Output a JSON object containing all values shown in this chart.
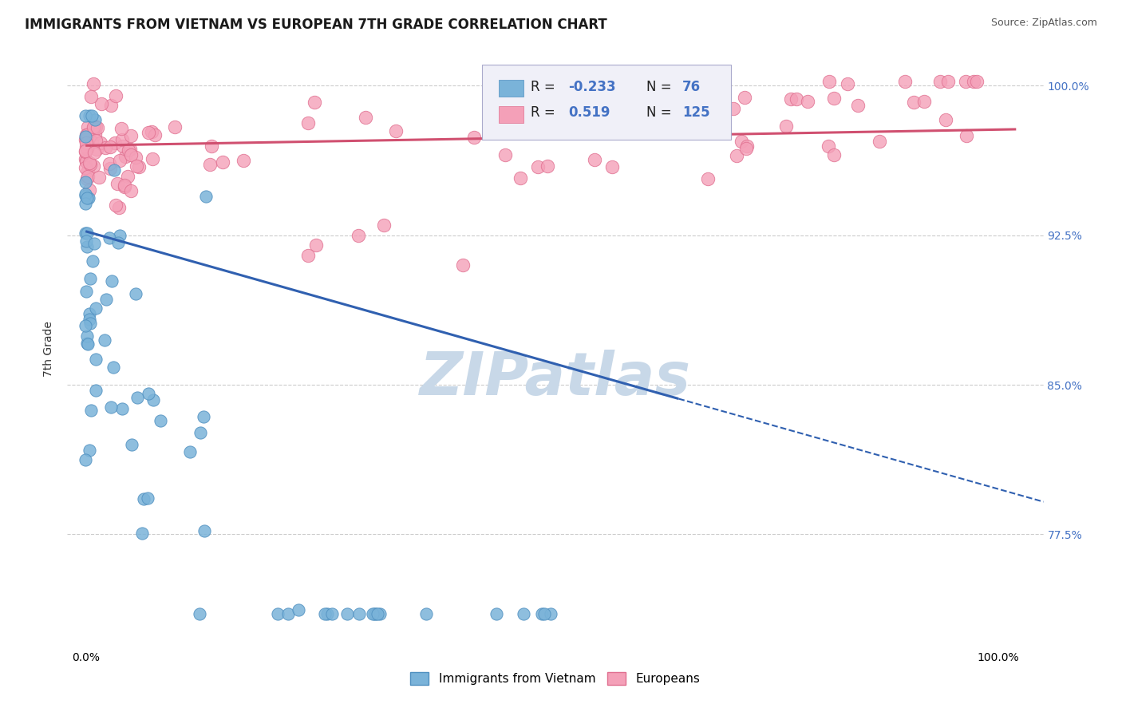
{
  "title": "IMMIGRANTS FROM VIETNAM VS EUROPEAN 7TH GRADE CORRELATION CHART",
  "source_text": "Source: ZipAtlas.com",
  "ylabel": "7th Grade",
  "blue_color": "#7ab3d9",
  "blue_edge_color": "#5090c0",
  "pink_color": "#f4a0b8",
  "pink_edge_color": "#e07090",
  "blue_line_color": "#3060b0",
  "pink_line_color": "#d05070",
  "watermark_color": "#c8d8e8",
  "grid_color": "#cccccc",
  "title_fontsize": 12,
  "source_fontsize": 9,
  "xlim": [
    -0.02,
    1.05
  ],
  "ylim": [
    0.718,
    1.018
  ],
  "y_ticks": [
    0.775,
    0.85,
    0.925,
    1.0
  ],
  "y_tick_labels": [
    "77.5%",
    "85.0%",
    "92.5%",
    "100.0%"
  ],
  "x_ticks": [
    0.0,
    1.0
  ],
  "x_tick_labels": [
    "0.0%",
    "100.0%"
  ]
}
